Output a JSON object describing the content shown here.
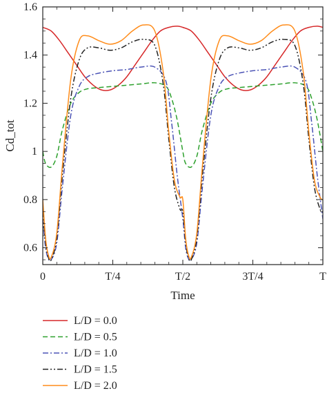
{
  "chart_data": {
    "type": "line",
    "title": "",
    "xlabel": "Time",
    "ylabel": "Cd_tot",
    "xlim": [
      0,
      1
    ],
    "ylim": [
      0.53,
      1.6
    ],
    "x_ticks": [
      {
        "value": 0,
        "label": "0"
      },
      {
        "value": 0.25,
        "label": "T/4"
      },
      {
        "value": 0.5,
        "label": "T/2"
      },
      {
        "value": 0.75,
        "label": "3T/4"
      },
      {
        "value": 1,
        "label": "T"
      }
    ],
    "y_ticks": [
      {
        "value": 0.6,
        "label": "0.6"
      },
      {
        "value": 0.8,
        "label": "0.8"
      },
      {
        "value": 1.0,
        "label": "1"
      },
      {
        "value": 1.2,
        "label": "1.2"
      },
      {
        "value": 1.4,
        "label": "1.4"
      },
      {
        "value": 1.6,
        "label": "1.6"
      }
    ],
    "grid": false,
    "legend_position": "below",
    "x_unit": "fraction of period T",
    "series": [
      {
        "name": "L/D = 0.0",
        "color": "#d62728",
        "dash": "solid",
        "x": [
          0,
          0.03,
          0.06,
          0.09,
          0.12,
          0.15,
          0.18,
          0.21,
          0.24,
          0.27,
          0.3,
          0.33,
          0.36,
          0.39,
          0.42,
          0.45,
          0.48,
          0.5,
          0.53,
          0.56,
          0.59,
          0.62,
          0.65,
          0.68,
          0.71,
          0.74,
          0.77,
          0.8,
          0.83,
          0.86,
          0.89,
          0.92,
          0.95,
          0.98,
          1.0
        ],
        "y": [
          1.515,
          1.5,
          1.46,
          1.41,
          1.36,
          1.31,
          1.275,
          1.255,
          1.255,
          1.275,
          1.31,
          1.36,
          1.41,
          1.46,
          1.5,
          1.515,
          1.52,
          1.515,
          1.5,
          1.46,
          1.41,
          1.36,
          1.31,
          1.275,
          1.255,
          1.255,
          1.275,
          1.31,
          1.36,
          1.41,
          1.46,
          1.5,
          1.515,
          1.52,
          1.515
        ]
      },
      {
        "name": "L/D = 0.5",
        "color": "#2ca02c",
        "dash": "dashed",
        "x": [
          0,
          0.01,
          0.03,
          0.05,
          0.07,
          0.1,
          0.13,
          0.16,
          0.2,
          0.25,
          0.3,
          0.35,
          0.4,
          0.44,
          0.46,
          0.48,
          0.5,
          0.51,
          0.53,
          0.55,
          0.57,
          0.6,
          0.63,
          0.66,
          0.7,
          0.75,
          0.8,
          0.85,
          0.9,
          0.94,
          0.96,
          0.98,
          1.0
        ],
        "y": [
          1.0,
          0.95,
          0.935,
          0.98,
          1.09,
          1.2,
          1.245,
          1.26,
          1.265,
          1.27,
          1.275,
          1.28,
          1.285,
          1.27,
          1.22,
          1.13,
          1.0,
          0.95,
          0.935,
          0.98,
          1.09,
          1.2,
          1.245,
          1.26,
          1.265,
          1.27,
          1.275,
          1.28,
          1.285,
          1.27,
          1.22,
          1.13,
          1.0
        ]
      },
      {
        "name": "L/D = 1.0",
        "color": "#4a52b5",
        "dash": "dashdot",
        "x": [
          0,
          0.01,
          0.02,
          0.03,
          0.05,
          0.07,
          0.1,
          0.13,
          0.16,
          0.2,
          0.25,
          0.3,
          0.35,
          0.4,
          0.44,
          0.46,
          0.48,
          0.5,
          0.51,
          0.52,
          0.53,
          0.55,
          0.57,
          0.6,
          0.63,
          0.66,
          0.7,
          0.75,
          0.8,
          0.85,
          0.9,
          0.94,
          0.96,
          0.98,
          1.0
        ],
        "y": [
          0.72,
          0.6,
          0.555,
          0.55,
          0.62,
          0.85,
          1.15,
          1.27,
          1.31,
          1.325,
          1.335,
          1.34,
          1.35,
          1.35,
          1.29,
          1.12,
          0.9,
          0.72,
          0.6,
          0.555,
          0.55,
          0.62,
          0.85,
          1.15,
          1.27,
          1.31,
          1.325,
          1.335,
          1.34,
          1.35,
          1.35,
          1.29,
          1.12,
          0.9,
          0.72
        ]
      },
      {
        "name": "L/D = 1.5",
        "color": "#222222",
        "dash": "dashdotdot",
        "x": [
          0,
          0.01,
          0.02,
          0.03,
          0.05,
          0.07,
          0.1,
          0.13,
          0.16,
          0.2,
          0.24,
          0.28,
          0.32,
          0.36,
          0.4,
          0.43,
          0.45,
          0.47,
          0.49,
          0.5,
          0.51,
          0.52,
          0.53,
          0.55,
          0.57,
          0.6,
          0.63,
          0.66,
          0.7,
          0.74,
          0.78,
          0.82,
          0.86,
          0.9,
          0.93,
          0.95,
          0.97,
          0.99,
          1.0
        ],
        "y": [
          0.75,
          0.62,
          0.56,
          0.55,
          0.64,
          0.9,
          1.22,
          1.38,
          1.43,
          1.43,
          1.42,
          1.43,
          1.455,
          1.465,
          1.44,
          1.28,
          1.05,
          0.85,
          0.76,
          0.75,
          0.62,
          0.56,
          0.55,
          0.64,
          0.9,
          1.22,
          1.38,
          1.43,
          1.43,
          1.42,
          1.43,
          1.455,
          1.465,
          1.44,
          1.28,
          1.05,
          0.85,
          0.76,
          0.75
        ]
      },
      {
        "name": "L/D = 2.0",
        "color": "#ff8c1a",
        "dash": "solid",
        "x": [
          0,
          0.01,
          0.02,
          0.03,
          0.05,
          0.07,
          0.1,
          0.13,
          0.16,
          0.2,
          0.24,
          0.28,
          0.32,
          0.36,
          0.4,
          0.43,
          0.45,
          0.47,
          0.49,
          0.5,
          0.51,
          0.52,
          0.53,
          0.55,
          0.57,
          0.6,
          0.63,
          0.66,
          0.7,
          0.74,
          0.78,
          0.82,
          0.86,
          0.9,
          0.93,
          0.95,
          0.97,
          0.99,
          1.0
        ],
        "y": [
          0.8,
          0.64,
          0.57,
          0.56,
          0.66,
          0.94,
          1.3,
          1.46,
          1.48,
          1.46,
          1.445,
          1.46,
          1.5,
          1.525,
          1.5,
          1.33,
          1.08,
          0.88,
          0.81,
          0.8,
          0.64,
          0.57,
          0.56,
          0.66,
          0.94,
          1.3,
          1.46,
          1.48,
          1.46,
          1.445,
          1.46,
          1.5,
          1.525,
          1.5,
          1.33,
          1.08,
          0.88,
          0.81,
          0.8
        ]
      }
    ]
  }
}
